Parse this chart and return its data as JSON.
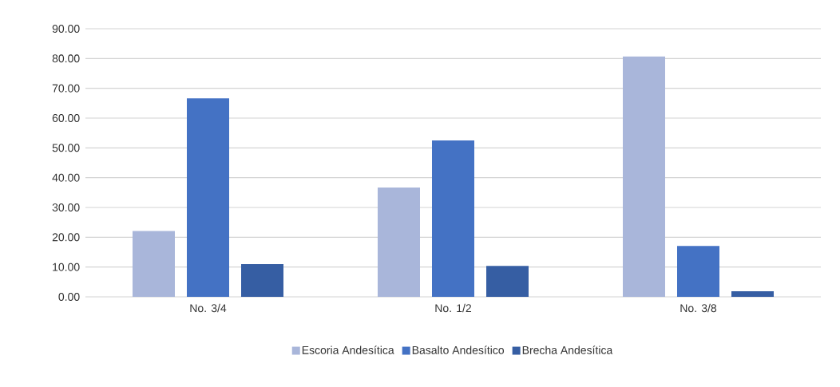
{
  "chart_data": {
    "type": "bar",
    "categories": [
      "No. 3/4",
      "No. 1/2",
      "No. 3/8"
    ],
    "series": [
      {
        "name": "Escoria Andesítica",
        "color": "#a9b6da",
        "values": [
          22.1,
          36.7,
          80.7
        ]
      },
      {
        "name": "Basalto Andesítico",
        "color": "#4472c4",
        "values": [
          66.6,
          52.5,
          17.1
        ]
      },
      {
        "name": "Brecha Andesítica",
        "color": "#365ea3",
        "values": [
          11.0,
          10.4,
          1.9
        ]
      }
    ],
    "ylim": [
      0,
      90
    ],
    "yticks": [
      {
        "value": 0,
        "label": "0.00"
      },
      {
        "value": 10,
        "label": "10.00"
      },
      {
        "value": 20,
        "label": "20.00"
      },
      {
        "value": 30,
        "label": "30.00"
      },
      {
        "value": 40,
        "label": "40.00"
      },
      {
        "value": 50,
        "label": "50.00"
      },
      {
        "value": 60,
        "label": "60.00"
      },
      {
        "value": 70,
        "label": "70.00"
      },
      {
        "value": 80,
        "label": "80.00"
      },
      {
        "value": 90,
        "label": "90.00"
      }
    ],
    "grid": "y",
    "legend": "bottom"
  }
}
